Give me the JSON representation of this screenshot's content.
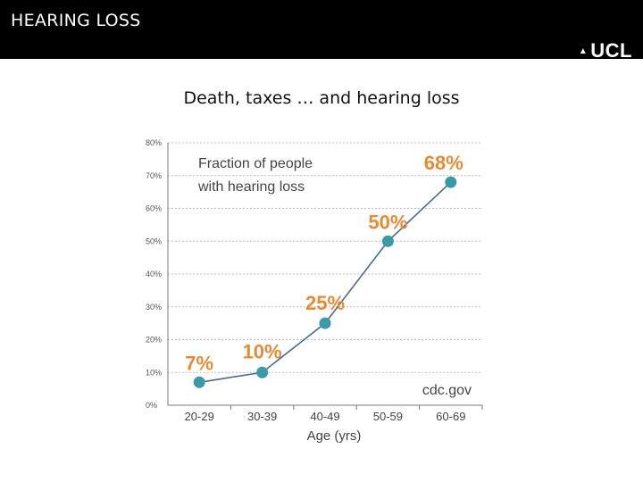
{
  "header": {
    "title": "HEARING LOSS",
    "logo_text": "UCL",
    "background": "#000000"
  },
  "subtitle": "Death, taxes … and hearing loss",
  "chart_data": {
    "type": "line",
    "title": "Fraction of people with hearing loss",
    "title_lines": [
      "Fraction of people",
      "with hearing loss"
    ],
    "xlabel": "Age (yrs)",
    "ylabel": "",
    "categories": [
      "20-29",
      "30-39",
      "40-49",
      "50-59",
      "60-69"
    ],
    "values": [
      7,
      10,
      25,
      50,
      68
    ],
    "data_labels": [
      "7%",
      "10%",
      "25%",
      "50%",
      "68%"
    ],
    "y_ticks": [
      "0%",
      "10%",
      "20%",
      "30%",
      "40%",
      "50%",
      "60%",
      "70%",
      "80%"
    ],
    "ylim": [
      0,
      80
    ],
    "grid": true,
    "source": "cdc.gov",
    "colors": {
      "marker": "#3a9aa8",
      "line": "#4a6a8a",
      "label": "#e58a35",
      "title": "#444444",
      "grid": "#bbbbbb"
    }
  }
}
